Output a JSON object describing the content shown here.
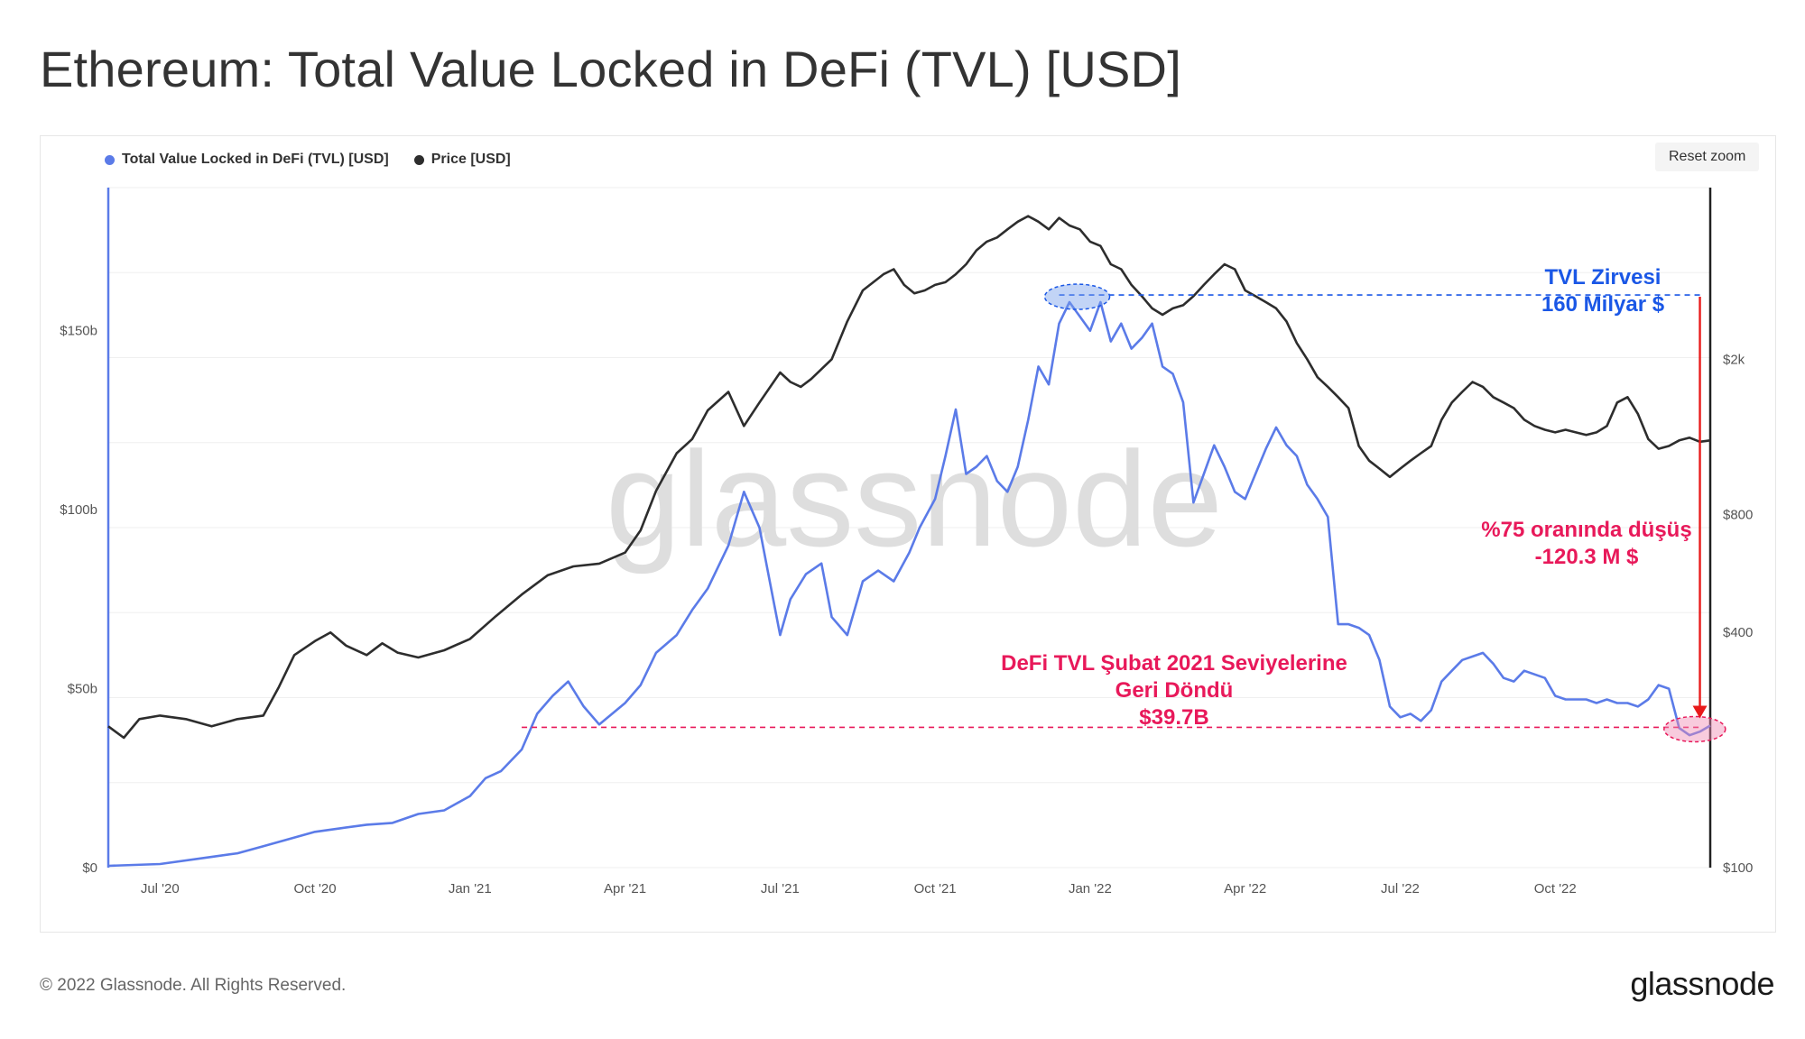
{
  "title": "Ethereum: Total Value Locked in DeFi (TVL) [USD]",
  "reset_zoom_label": "Reset zoom",
  "watermark": "glassnode",
  "footer": {
    "copyright": "© 2022 Glassnode. All Rights Reserved.",
    "logo": "glassnode"
  },
  "colors": {
    "tvl": "#5b7be8",
    "price": "#2d2d2d",
    "annotation_pink": "#e8195a",
    "annotation_blue": "#1a57e6",
    "arrow_red": "#e81a1a"
  },
  "chart_data": {
    "type": "line",
    "title": "Ethereum: Total Value Locked in DeFi (TVL) [USD]",
    "legend": [
      {
        "name": "Total Value Locked in DeFi (TVL) [USD]",
        "color": "#5b7be8"
      },
      {
        "name": "Price [USD]",
        "color": "#2d2d2d"
      }
    ],
    "x_ticks": [
      "Jul '20",
      "Oct '20",
      "Jan '21",
      "Apr '21",
      "Jul '21",
      "Oct '21",
      "Jan '22",
      "Apr '22",
      "Jul '22",
      "Oct '22"
    ],
    "x_range_months": [
      0,
      31
    ],
    "x_tick_months": [
      1,
      4,
      7,
      10,
      13,
      16,
      19,
      22,
      25,
      28
    ],
    "y_left": {
      "ticks": [
        "$0",
        "$50b",
        "$100b",
        "$150b"
      ],
      "tick_values": [
        0,
        50,
        100,
        150
      ],
      "range": [
        0,
        190
      ],
      "unit": "billion USD"
    },
    "y_right": {
      "ticks": [
        "$100",
        "$400",
        "$800",
        "$2k"
      ],
      "tick_values": [
        100,
        400,
        800,
        2000
      ],
      "range": [
        100,
        5500
      ],
      "scale": "log"
    },
    "series": [
      {
        "name": "Total Value Locked in DeFi (TVL) [USD]",
        "axis": "left",
        "points": [
          [
            0,
            0.5
          ],
          [
            1,
            1
          ],
          [
            2,
            3
          ],
          [
            2.5,
            4
          ],
          [
            3,
            6
          ],
          [
            3.5,
            8
          ],
          [
            4,
            10
          ],
          [
            4.5,
            11
          ],
          [
            5,
            12
          ],
          [
            5.5,
            12.5
          ],
          [
            6,
            15
          ],
          [
            6.5,
            16
          ],
          [
            7,
            20
          ],
          [
            7.3,
            25
          ],
          [
            7.6,
            27
          ],
          [
            8,
            33
          ],
          [
            8.3,
            43
          ],
          [
            8.6,
            48
          ],
          [
            8.9,
            52
          ],
          [
            9.2,
            45
          ],
          [
            9.5,
            40
          ],
          [
            10,
            46
          ],
          [
            10.3,
            51
          ],
          [
            10.6,
            60
          ],
          [
            11,
            65
          ],
          [
            11.3,
            72
          ],
          [
            11.6,
            78
          ],
          [
            12,
            90
          ],
          [
            12.3,
            105
          ],
          [
            12.6,
            95
          ],
          [
            12.8,
            80
          ],
          [
            13,
            65
          ],
          [
            13.2,
            75
          ],
          [
            13.5,
            82
          ],
          [
            13.8,
            85
          ],
          [
            14,
            70
          ],
          [
            14.3,
            65
          ],
          [
            14.6,
            80
          ],
          [
            14.9,
            83
          ],
          [
            15.2,
            80
          ],
          [
            15.5,
            88
          ],
          [
            15.7,
            95
          ],
          [
            16,
            103
          ],
          [
            16.2,
            115
          ],
          [
            16.4,
            128
          ],
          [
            16.6,
            110
          ],
          [
            16.8,
            112
          ],
          [
            17,
            115
          ],
          [
            17.2,
            108
          ],
          [
            17.4,
            105
          ],
          [
            17.6,
            112
          ],
          [
            17.8,
            125
          ],
          [
            18,
            140
          ],
          [
            18.2,
            135
          ],
          [
            18.4,
            152
          ],
          [
            18.6,
            158
          ],
          [
            18.8,
            154
          ],
          [
            19,
            150
          ],
          [
            19.2,
            158
          ],
          [
            19.4,
            147
          ],
          [
            19.6,
            152
          ],
          [
            19.8,
            145
          ],
          [
            20,
            148
          ],
          [
            20.2,
            152
          ],
          [
            20.4,
            140
          ],
          [
            20.6,
            138
          ],
          [
            20.8,
            130
          ],
          [
            21,
            102
          ],
          [
            21.2,
            110
          ],
          [
            21.4,
            118
          ],
          [
            21.6,
            112
          ],
          [
            21.8,
            105
          ],
          [
            22,
            103
          ],
          [
            22.2,
            110
          ],
          [
            22.4,
            117
          ],
          [
            22.6,
            123
          ],
          [
            22.8,
            118
          ],
          [
            23,
            115
          ],
          [
            23.2,
            107
          ],
          [
            23.4,
            103
          ],
          [
            23.6,
            98
          ],
          [
            23.8,
            68
          ],
          [
            24,
            68
          ],
          [
            24.2,
            67
          ],
          [
            24.4,
            65
          ],
          [
            24.6,
            58
          ],
          [
            24.8,
            45
          ],
          [
            25,
            42
          ],
          [
            25.2,
            43
          ],
          [
            25.4,
            41
          ],
          [
            25.6,
            44
          ],
          [
            25.8,
            52
          ],
          [
            26,
            55
          ],
          [
            26.2,
            58
          ],
          [
            26.4,
            59
          ],
          [
            26.6,
            60
          ],
          [
            26.8,
            57
          ],
          [
            27,
            53
          ],
          [
            27.2,
            52
          ],
          [
            27.4,
            55
          ],
          [
            27.6,
            54
          ],
          [
            27.8,
            53
          ],
          [
            28,
            48
          ],
          [
            28.2,
            47
          ],
          [
            28.4,
            47
          ],
          [
            28.6,
            47
          ],
          [
            28.8,
            46
          ],
          [
            29,
            47
          ],
          [
            29.2,
            46
          ],
          [
            29.4,
            46
          ],
          [
            29.6,
            45
          ],
          [
            29.8,
            47
          ],
          [
            30,
            51
          ],
          [
            30.2,
            50
          ],
          [
            30.4,
            39
          ],
          [
            30.6,
            37
          ],
          [
            30.8,
            38
          ],
          [
            31,
            39.7
          ]
        ]
      },
      {
        "name": "Price [USD]",
        "axis": "right",
        "points": [
          [
            0,
            230
          ],
          [
            0.3,
            215
          ],
          [
            0.6,
            240
          ],
          [
            1,
            245
          ],
          [
            1.5,
            240
          ],
          [
            2,
            230
          ],
          [
            2.5,
            240
          ],
          [
            3,
            245
          ],
          [
            3.3,
            290
          ],
          [
            3.6,
            350
          ],
          [
            4,
            380
          ],
          [
            4.3,
            400
          ],
          [
            4.6,
            370
          ],
          [
            5,
            350
          ],
          [
            5.3,
            375
          ],
          [
            5.6,
            355
          ],
          [
            6,
            345
          ],
          [
            6.5,
            360
          ],
          [
            7,
            385
          ],
          [
            7.5,
            440
          ],
          [
            8,
            500
          ],
          [
            8.5,
            560
          ],
          [
            9,
            590
          ],
          [
            9.5,
            600
          ],
          [
            10,
            640
          ],
          [
            10.3,
            730
          ],
          [
            10.6,
            920
          ],
          [
            11,
            1150
          ],
          [
            11.3,
            1250
          ],
          [
            11.6,
            1480
          ],
          [
            12,
            1650
          ],
          [
            12.3,
            1350
          ],
          [
            12.6,
            1550
          ],
          [
            13,
            1850
          ],
          [
            13.2,
            1750
          ],
          [
            13.4,
            1700
          ],
          [
            13.6,
            1780
          ],
          [
            14,
            2000
          ],
          [
            14.3,
            2500
          ],
          [
            14.6,
            3000
          ],
          [
            15,
            3300
          ],
          [
            15.2,
            3400
          ],
          [
            15.4,
            3100
          ],
          [
            15.6,
            2950
          ],
          [
            15.8,
            3000
          ],
          [
            16,
            3100
          ],
          [
            16.2,
            3150
          ],
          [
            16.4,
            3300
          ],
          [
            16.6,
            3500
          ],
          [
            16.8,
            3800
          ],
          [
            17,
            4000
          ],
          [
            17.2,
            4100
          ],
          [
            17.4,
            4300
          ],
          [
            17.6,
            4500
          ],
          [
            17.8,
            4650
          ],
          [
            18,
            4500
          ],
          [
            18.2,
            4300
          ],
          [
            18.4,
            4600
          ],
          [
            18.6,
            4400
          ],
          [
            18.8,
            4300
          ],
          [
            19,
            4000
          ],
          [
            19.2,
            3900
          ],
          [
            19.4,
            3500
          ],
          [
            19.6,
            3400
          ],
          [
            19.8,
            3100
          ],
          [
            20,
            2900
          ],
          [
            20.2,
            2700
          ],
          [
            20.4,
            2600
          ],
          [
            20.6,
            2700
          ],
          [
            20.8,
            2750
          ],
          [
            21,
            2900
          ],
          [
            21.2,
            3100
          ],
          [
            21.4,
            3300
          ],
          [
            21.6,
            3500
          ],
          [
            21.8,
            3400
          ],
          [
            22,
            3000
          ],
          [
            22.2,
            2900
          ],
          [
            22.4,
            2800
          ],
          [
            22.6,
            2700
          ],
          [
            22.8,
            2500
          ],
          [
            23,
            2200
          ],
          [
            23.2,
            2000
          ],
          [
            23.4,
            1800
          ],
          [
            23.6,
            1700
          ],
          [
            23.8,
            1600
          ],
          [
            24,
            1500
          ],
          [
            24.2,
            1200
          ],
          [
            24.4,
            1100
          ],
          [
            24.6,
            1050
          ],
          [
            24.8,
            1000
          ],
          [
            25,
            1050
          ],
          [
            25.2,
            1100
          ],
          [
            25.4,
            1150
          ],
          [
            25.6,
            1200
          ],
          [
            25.8,
            1400
          ],
          [
            26,
            1550
          ],
          [
            26.2,
            1650
          ],
          [
            26.4,
            1750
          ],
          [
            26.6,
            1700
          ],
          [
            26.8,
            1600
          ],
          [
            27,
            1550
          ],
          [
            27.2,
            1500
          ],
          [
            27.4,
            1400
          ],
          [
            27.6,
            1350
          ],
          [
            27.8,
            1320
          ],
          [
            28,
            1300
          ],
          [
            28.2,
            1320
          ],
          [
            28.4,
            1300
          ],
          [
            28.6,
            1280
          ],
          [
            28.8,
            1300
          ],
          [
            29,
            1350
          ],
          [
            29.2,
            1550
          ],
          [
            29.4,
            1600
          ],
          [
            29.6,
            1450
          ],
          [
            29.8,
            1250
          ],
          [
            30,
            1180
          ],
          [
            30.2,
            1200
          ],
          [
            30.4,
            1240
          ],
          [
            30.6,
            1260
          ],
          [
            30.8,
            1230
          ],
          [
            31,
            1240
          ]
        ]
      }
    ],
    "annotations": [
      {
        "id": "tvl-peak",
        "lines": [
          "TVL Zirvesi",
          "160 Milyar $"
        ],
        "color": "#1a57e6",
        "value": 160
      },
      {
        "id": "drop",
        "lines": [
          "%75 oranında düşüş",
          "-120.3 M $"
        ],
        "color": "#e8195a"
      },
      {
        "id": "return",
        "lines": [
          "DeFi TVL Şubat 2021 Seviyelerine",
          "Geri Döndü",
          "$39.7B"
        ],
        "color": "#e8195a",
        "value": 39.7
      }
    ]
  }
}
